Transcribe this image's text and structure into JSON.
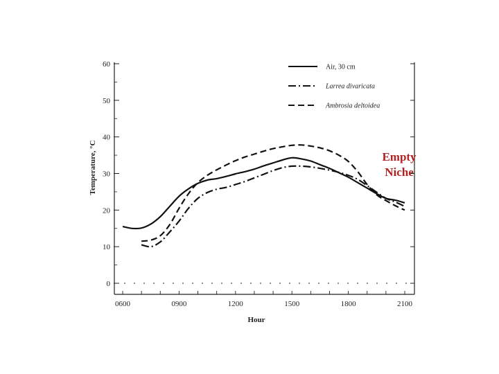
{
  "annotation": {
    "line1": "Empty",
    "line2": "Niche",
    "color": "#b22222"
  },
  "chart_data": {
    "type": "line",
    "xlabel": "Hour",
    "ylabel": "Temperature, °C",
    "x_ticks": [
      "0600",
      "0900",
      "1200",
      "1500",
      "1800",
      "2100"
    ],
    "x_tick_values": [
      6,
      9,
      12,
      15,
      18,
      21
    ],
    "y_ticks": [
      "0",
      "10",
      "20",
      "30",
      "40",
      "50",
      "60"
    ],
    "xlim": [
      5.5,
      21.5
    ],
    "ylim": [
      -1,
      60
    ],
    "legend_position": "top-right",
    "grid": false,
    "series": [
      {
        "name": "Air, 30 cm",
        "style": "solid",
        "x": [
          6,
          6.5,
          7,
          7.5,
          8,
          8.5,
          9,
          9.5,
          10,
          10.5,
          11,
          11.5,
          12,
          12.5,
          13,
          13.5,
          14,
          14.5,
          15,
          15.5,
          16,
          16.5,
          17,
          17.5,
          18,
          18.5,
          19,
          19.5,
          20,
          20.5,
          21
        ],
        "values": [
          15.5,
          15,
          15.1,
          16.2,
          18.2,
          21,
          23.8,
          25.8,
          27.3,
          28.2,
          28.6,
          29.2,
          29.9,
          30.5,
          31.2,
          32.1,
          32.9,
          33.7,
          34.3,
          34,
          33.4,
          32.4,
          31.4,
          30.2,
          29,
          27.5,
          26,
          24.5,
          23.2,
          22.7,
          22
        ]
      },
      {
        "name": "Larrea divaricata",
        "style": "dashdot",
        "x": [
          7,
          7.5,
          8,
          8.5,
          9,
          9.5,
          10,
          10.5,
          11,
          11.5,
          12,
          12.5,
          13,
          13.5,
          14,
          14.5,
          15,
          15.5,
          16,
          16.5,
          17,
          17.5,
          18,
          18.5,
          19,
          19.5,
          20,
          20.5,
          21
        ],
        "values": [
          10.5,
          10,
          11.3,
          14,
          17,
          20.5,
          23.2,
          24.8,
          25.7,
          26.2,
          27,
          27.8,
          28.8,
          29.8,
          30.8,
          31.6,
          32,
          32,
          31.8,
          31.4,
          30.9,
          30.3,
          29.5,
          28.4,
          26.7,
          24.9,
          23.2,
          22.2,
          21
        ]
      },
      {
        "name": "Ambrosia deltoidea",
        "style": "dashed",
        "x": [
          7,
          7.5,
          8,
          8.5,
          9,
          9.5,
          10,
          10.5,
          11,
          11.5,
          12,
          12.5,
          13,
          13.5,
          14,
          14.5,
          15,
          15.5,
          16,
          16.5,
          17,
          17.5,
          18,
          18.5,
          19,
          19.5,
          20,
          20.5,
          21
        ],
        "values": [
          11.5,
          11.8,
          13,
          16,
          20.5,
          24.5,
          27.5,
          29.5,
          31,
          32.3,
          33.5,
          34.5,
          35.3,
          36.1,
          36.8,
          37.3,
          37.7,
          37.8,
          37.5,
          37,
          36.2,
          35,
          33.3,
          30.5,
          27,
          24.2,
          22.6,
          21.2,
          20
        ]
      }
    ]
  }
}
